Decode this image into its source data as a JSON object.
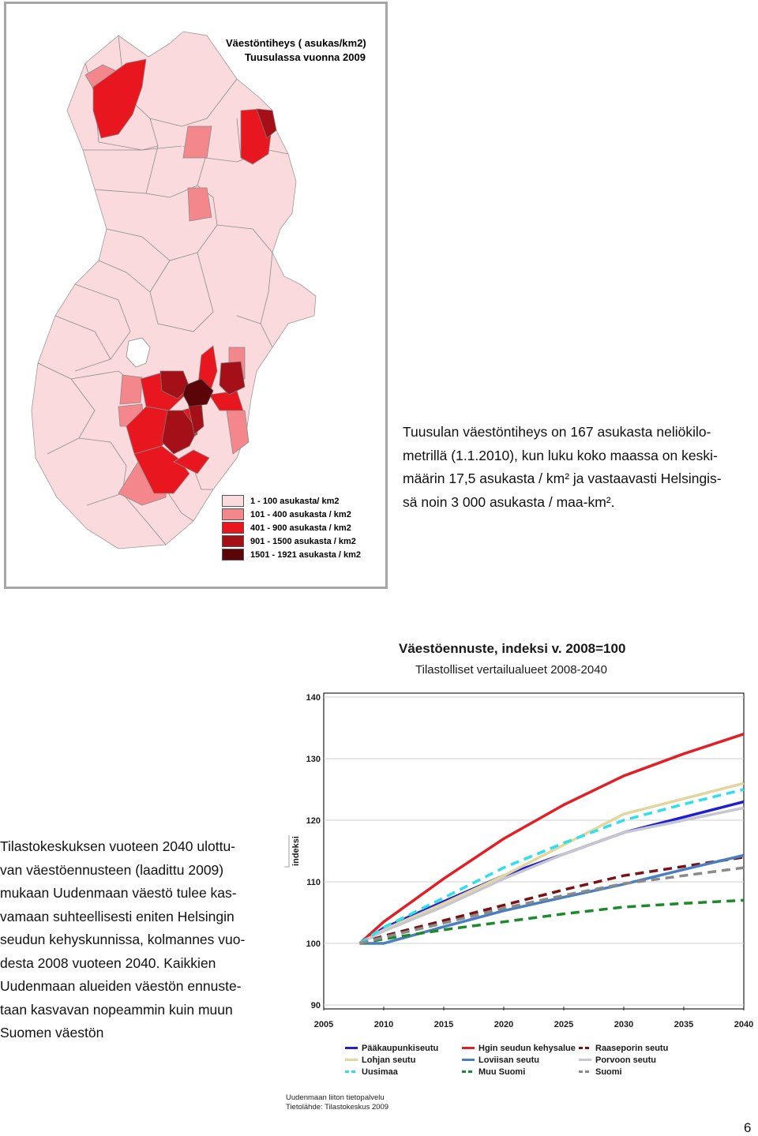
{
  "map": {
    "title_line1": "Väestöntiheys  ( asukas/km2)",
    "title_line2": "Tuusulassa vuonna 2009",
    "legend": [
      {
        "label": "1 - 100 asukasta/ km2",
        "color": "#fadadd"
      },
      {
        "label": "101 - 400 asukasta / km2",
        "color": "#f4878c"
      },
      {
        "label": "401 - 900 asukasta / km2",
        "color": "#e8161e"
      },
      {
        "label": "901 - 1500 asukasta / km2",
        "color": "#a50f17"
      },
      {
        "label": "1501 - 1921 asukasta / km2",
        "color": "#5c0508"
      }
    ]
  },
  "paragraph1": {
    "lines": [
      "Tuusulan väestöntiheys on 167 asukasta neliökilo-",
      "metrillä (1.1.2010), kun luku koko maassa on keski-",
      "määrin 17,5 asukasta / km² ja vastaavasti Helsingis-",
      "sä noin 3 000 asukasta / maa-km²."
    ]
  },
  "paragraph2": {
    "lines": [
      "Tilastokeskuksen vuoteen 2040 ulottu-",
      "van väestöennusteen (laadittu 2009)",
      "mukaan Uudenmaan väestö tulee kas-",
      "vamaan suhteellisesti eniten Helsingin",
      "seudun kehyskunnissa, kolmannes vuo-",
      "desta 2008 vuoteen 2040. Kaikkien",
      "Uudenmaan alueiden väestön ennuste-",
      "taan kasvavan nopeammin kuin muun",
      "Suomen väestön"
    ]
  },
  "chart_data": {
    "type": "line",
    "title": "Väestöennuste, indeksi v. 2008=100",
    "subtitle": "Tilastolliset vertailualueet 2008-2040",
    "ylabel": "indeksi",
    "xlabel": "",
    "ylim": [
      90,
      140
    ],
    "xlim": [
      2005,
      2040
    ],
    "x_ticks": [
      "2005",
      "2010",
      "2015",
      "2020",
      "2025",
      "2030",
      "2035",
      "2040"
    ],
    "y_ticks": [
      "90",
      "100",
      "110",
      "120",
      "130",
      "140"
    ],
    "x": [
      2008,
      2010,
      2015,
      2020,
      2025,
      2030,
      2035,
      2040
    ],
    "grid": true,
    "legend_position": "bottom",
    "series": [
      {
        "name": "Pääkaupunkiseutu",
        "color": "#1f1fd1",
        "dash": false,
        "values": [
          100,
          102.5,
          106.8,
          111,
          114.5,
          118,
          120.5,
          123
        ]
      },
      {
        "name": "Hgin seudun kehysalue",
        "color": "#e11f26",
        "dash": false,
        "values": [
          100,
          103.5,
          110.5,
          117,
          122.5,
          127.2,
          130.8,
          134
        ]
      },
      {
        "name": "Raaseporin seutu",
        "color": "#7a1214",
        "dash": true,
        "values": [
          100,
          101.2,
          103.7,
          106.2,
          108.7,
          111,
          112.5,
          114
        ]
      },
      {
        "name": "Lohjan seutu",
        "color": "#e3d59e",
        "dash": false,
        "values": [
          100,
          102.2,
          106.5,
          111,
          116,
          121,
          123.5,
          126
        ]
      },
      {
        "name": "Loviisan seutu",
        "color": "#4a7ec2",
        "dash": false,
        "values": [
          100,
          100,
          102.7,
          105.3,
          107.5,
          109.6,
          112,
          114.3
        ]
      },
      {
        "name": "Porvoon seutu",
        "color": "#c6c6ce",
        "dash": false,
        "values": [
          100,
          102,
          106,
          110.5,
          114.5,
          118,
          120,
          122
        ]
      },
      {
        "name": "Uusimaa",
        "color": "#2ee0ee",
        "dash": true,
        "values": [
          100,
          102.6,
          107.4,
          112.3,
          116.3,
          120,
          122.6,
          125
        ]
      },
      {
        "name": "Muu Suomi",
        "color": "#1c8a2a",
        "dash": true,
        "values": [
          100,
          100.7,
          102.2,
          103.5,
          104.8,
          105.9,
          106.5,
          107
        ]
      },
      {
        "name": "Suomi",
        "color": "#8a8a8a",
        "dash": true,
        "values": [
          100,
          101,
          103.3,
          105.7,
          107.8,
          109.7,
          111,
          112.3
        ]
      }
    ]
  },
  "source": {
    "line1": "Uudenmaan liiton tietopalvelu",
    "line2": "Tietolähde: Tilastokeskus 2009"
  },
  "page_number": "6"
}
